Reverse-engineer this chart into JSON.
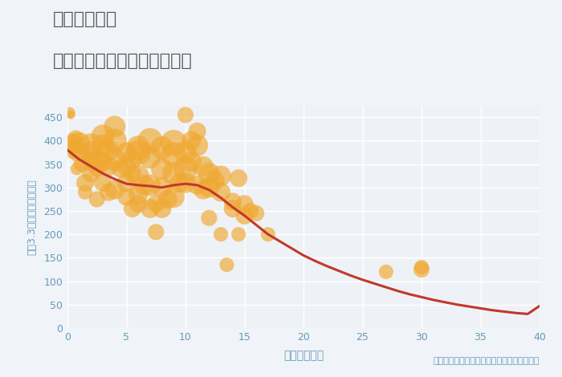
{
  "title_line1": "大阪府難波駅",
  "title_line2": "築年数別中古マンション価格",
  "xlabel": "築年数（年）",
  "ylabel": "坪（3.3㎡）単価（万円）",
  "annotation": "円の大きさは、取引のあった物件面積を示す",
  "xlim": [
    0,
    40
  ],
  "ylim": [
    0,
    475
  ],
  "xticks": [
    0,
    5,
    10,
    15,
    20,
    25,
    30,
    35,
    40
  ],
  "yticks": [
    0,
    50,
    100,
    150,
    200,
    250,
    300,
    350,
    400,
    450
  ],
  "fig_bg": "#f0f4f8",
  "plot_bg": "#eef2f7",
  "grid_color": "#ffffff",
  "scatter_color": "#f0a830",
  "scatter_alpha": 0.65,
  "line_color": "#c0392b",
  "line_width": 2.2,
  "title_color": "#555555",
  "label_color": "#6699bb",
  "annotation_color": "#6699bb",
  "tick_color": "#6699bb",
  "scatter_points": [
    [
      0.2,
      460,
      15
    ],
    [
      0.3,
      455,
      10
    ],
    [
      0.5,
      395,
      40
    ],
    [
      0.5,
      380,
      35
    ],
    [
      0.7,
      405,
      30
    ],
    [
      0.8,
      390,
      25
    ],
    [
      0.8,
      340,
      20
    ],
    [
      1.0,
      375,
      45
    ],
    [
      1.0,
      395,
      50
    ],
    [
      1.2,
      350,
      30
    ],
    [
      1.5,
      310,
      35
    ],
    [
      1.5,
      290,
      25
    ],
    [
      2.0,
      375,
      55
    ],
    [
      2.0,
      390,
      60
    ],
    [
      2.0,
      355,
      40
    ],
    [
      2.0,
      330,
      35
    ],
    [
      2.5,
      360,
      45
    ],
    [
      2.5,
      340,
      30
    ],
    [
      2.5,
      275,
      30
    ],
    [
      3.0,
      410,
      55
    ],
    [
      3.0,
      390,
      50
    ],
    [
      3.0,
      355,
      40
    ],
    [
      3.0,
      310,
      35
    ],
    [
      3.5,
      380,
      45
    ],
    [
      3.5,
      345,
      40
    ],
    [
      3.5,
      290,
      35
    ],
    [
      4.0,
      430,
      50
    ],
    [
      4.0,
      400,
      60
    ],
    [
      4.0,
      360,
      55
    ],
    [
      4.0,
      295,
      40
    ],
    [
      4.5,
      340,
      35
    ],
    [
      5.0,
      375,
      45
    ],
    [
      5.0,
      345,
      40
    ],
    [
      5.0,
      310,
      40
    ],
    [
      5.0,
      280,
      35
    ],
    [
      5.5,
      360,
      40
    ],
    [
      5.5,
      330,
      35
    ],
    [
      5.5,
      255,
      35
    ],
    [
      6.0,
      385,
      60
    ],
    [
      6.0,
      375,
      65
    ],
    [
      6.0,
      325,
      50
    ],
    [
      6.0,
      285,
      40
    ],
    [
      6.0,
      265,
      35
    ],
    [
      6.5,
      305,
      45
    ],
    [
      7.0,
      400,
      65
    ],
    [
      7.0,
      365,
      55
    ],
    [
      7.0,
      305,
      50
    ],
    [
      7.0,
      255,
      40
    ],
    [
      7.5,
      265,
      35
    ],
    [
      7.5,
      205,
      30
    ],
    [
      8.0,
      385,
      55
    ],
    [
      8.0,
      340,
      50
    ],
    [
      8.0,
      300,
      45
    ],
    [
      8.0,
      255,
      40
    ],
    [
      8.5,
      275,
      40
    ],
    [
      9.0,
      395,
      70
    ],
    [
      9.0,
      370,
      65
    ],
    [
      9.0,
      330,
      55
    ],
    [
      9.0,
      280,
      50
    ],
    [
      9.5,
      310,
      40
    ],
    [
      10.0,
      455,
      30
    ],
    [
      10.0,
      375,
      55
    ],
    [
      10.0,
      340,
      60
    ],
    [
      10.0,
      310,
      45
    ],
    [
      10.5,
      400,
      40
    ],
    [
      10.5,
      355,
      45
    ],
    [
      11.0,
      420,
      35
    ],
    [
      11.0,
      390,
      50
    ],
    [
      11.0,
      305,
      40
    ],
    [
      11.5,
      345,
      45
    ],
    [
      11.5,
      295,
      40
    ],
    [
      12.0,
      330,
      50
    ],
    [
      12.0,
      300,
      45
    ],
    [
      12.0,
      235,
      30
    ],
    [
      12.5,
      315,
      40
    ],
    [
      13.0,
      325,
      45
    ],
    [
      13.0,
      290,
      40
    ],
    [
      13.0,
      200,
      25
    ],
    [
      13.5,
      135,
      25
    ],
    [
      14.0,
      270,
      35
    ],
    [
      14.0,
      255,
      35
    ],
    [
      14.5,
      320,
      35
    ],
    [
      14.5,
      200,
      25
    ],
    [
      15.0,
      240,
      35
    ],
    [
      15.0,
      265,
      35
    ],
    [
      15.5,
      250,
      30
    ],
    [
      16.0,
      245,
      30
    ],
    [
      17.0,
      200,
      25
    ],
    [
      27.0,
      120,
      25
    ],
    [
      30.0,
      125,
      30
    ],
    [
      30.0,
      130,
      25
    ]
  ],
  "trend_line": [
    [
      0,
      380
    ],
    [
      1,
      360
    ],
    [
      2,
      345
    ],
    [
      3,
      330
    ],
    [
      4,
      318
    ],
    [
      5,
      308
    ],
    [
      6,
      305
    ],
    [
      7,
      303
    ],
    [
      8,
      300
    ],
    [
      9,
      305
    ],
    [
      10,
      308
    ],
    [
      11,
      305
    ],
    [
      12,
      295
    ],
    [
      13,
      278
    ],
    [
      14,
      258
    ],
    [
      15,
      240
    ],
    [
      16,
      220
    ],
    [
      17,
      200
    ],
    [
      18,
      185
    ],
    [
      19,
      170
    ],
    [
      20,
      155
    ],
    [
      21,
      143
    ],
    [
      22,
      132
    ],
    [
      23,
      122
    ],
    [
      24,
      112
    ],
    [
      25,
      103
    ],
    [
      26,
      95
    ],
    [
      27,
      87
    ],
    [
      28,
      79
    ],
    [
      29,
      72
    ],
    [
      30,
      66
    ],
    [
      31,
      60
    ],
    [
      32,
      55
    ],
    [
      33,
      50
    ],
    [
      34,
      46
    ],
    [
      35,
      42
    ],
    [
      36,
      38
    ],
    [
      37,
      35
    ],
    [
      38,
      32
    ],
    [
      39,
      30
    ],
    [
      40,
      47
    ]
  ]
}
